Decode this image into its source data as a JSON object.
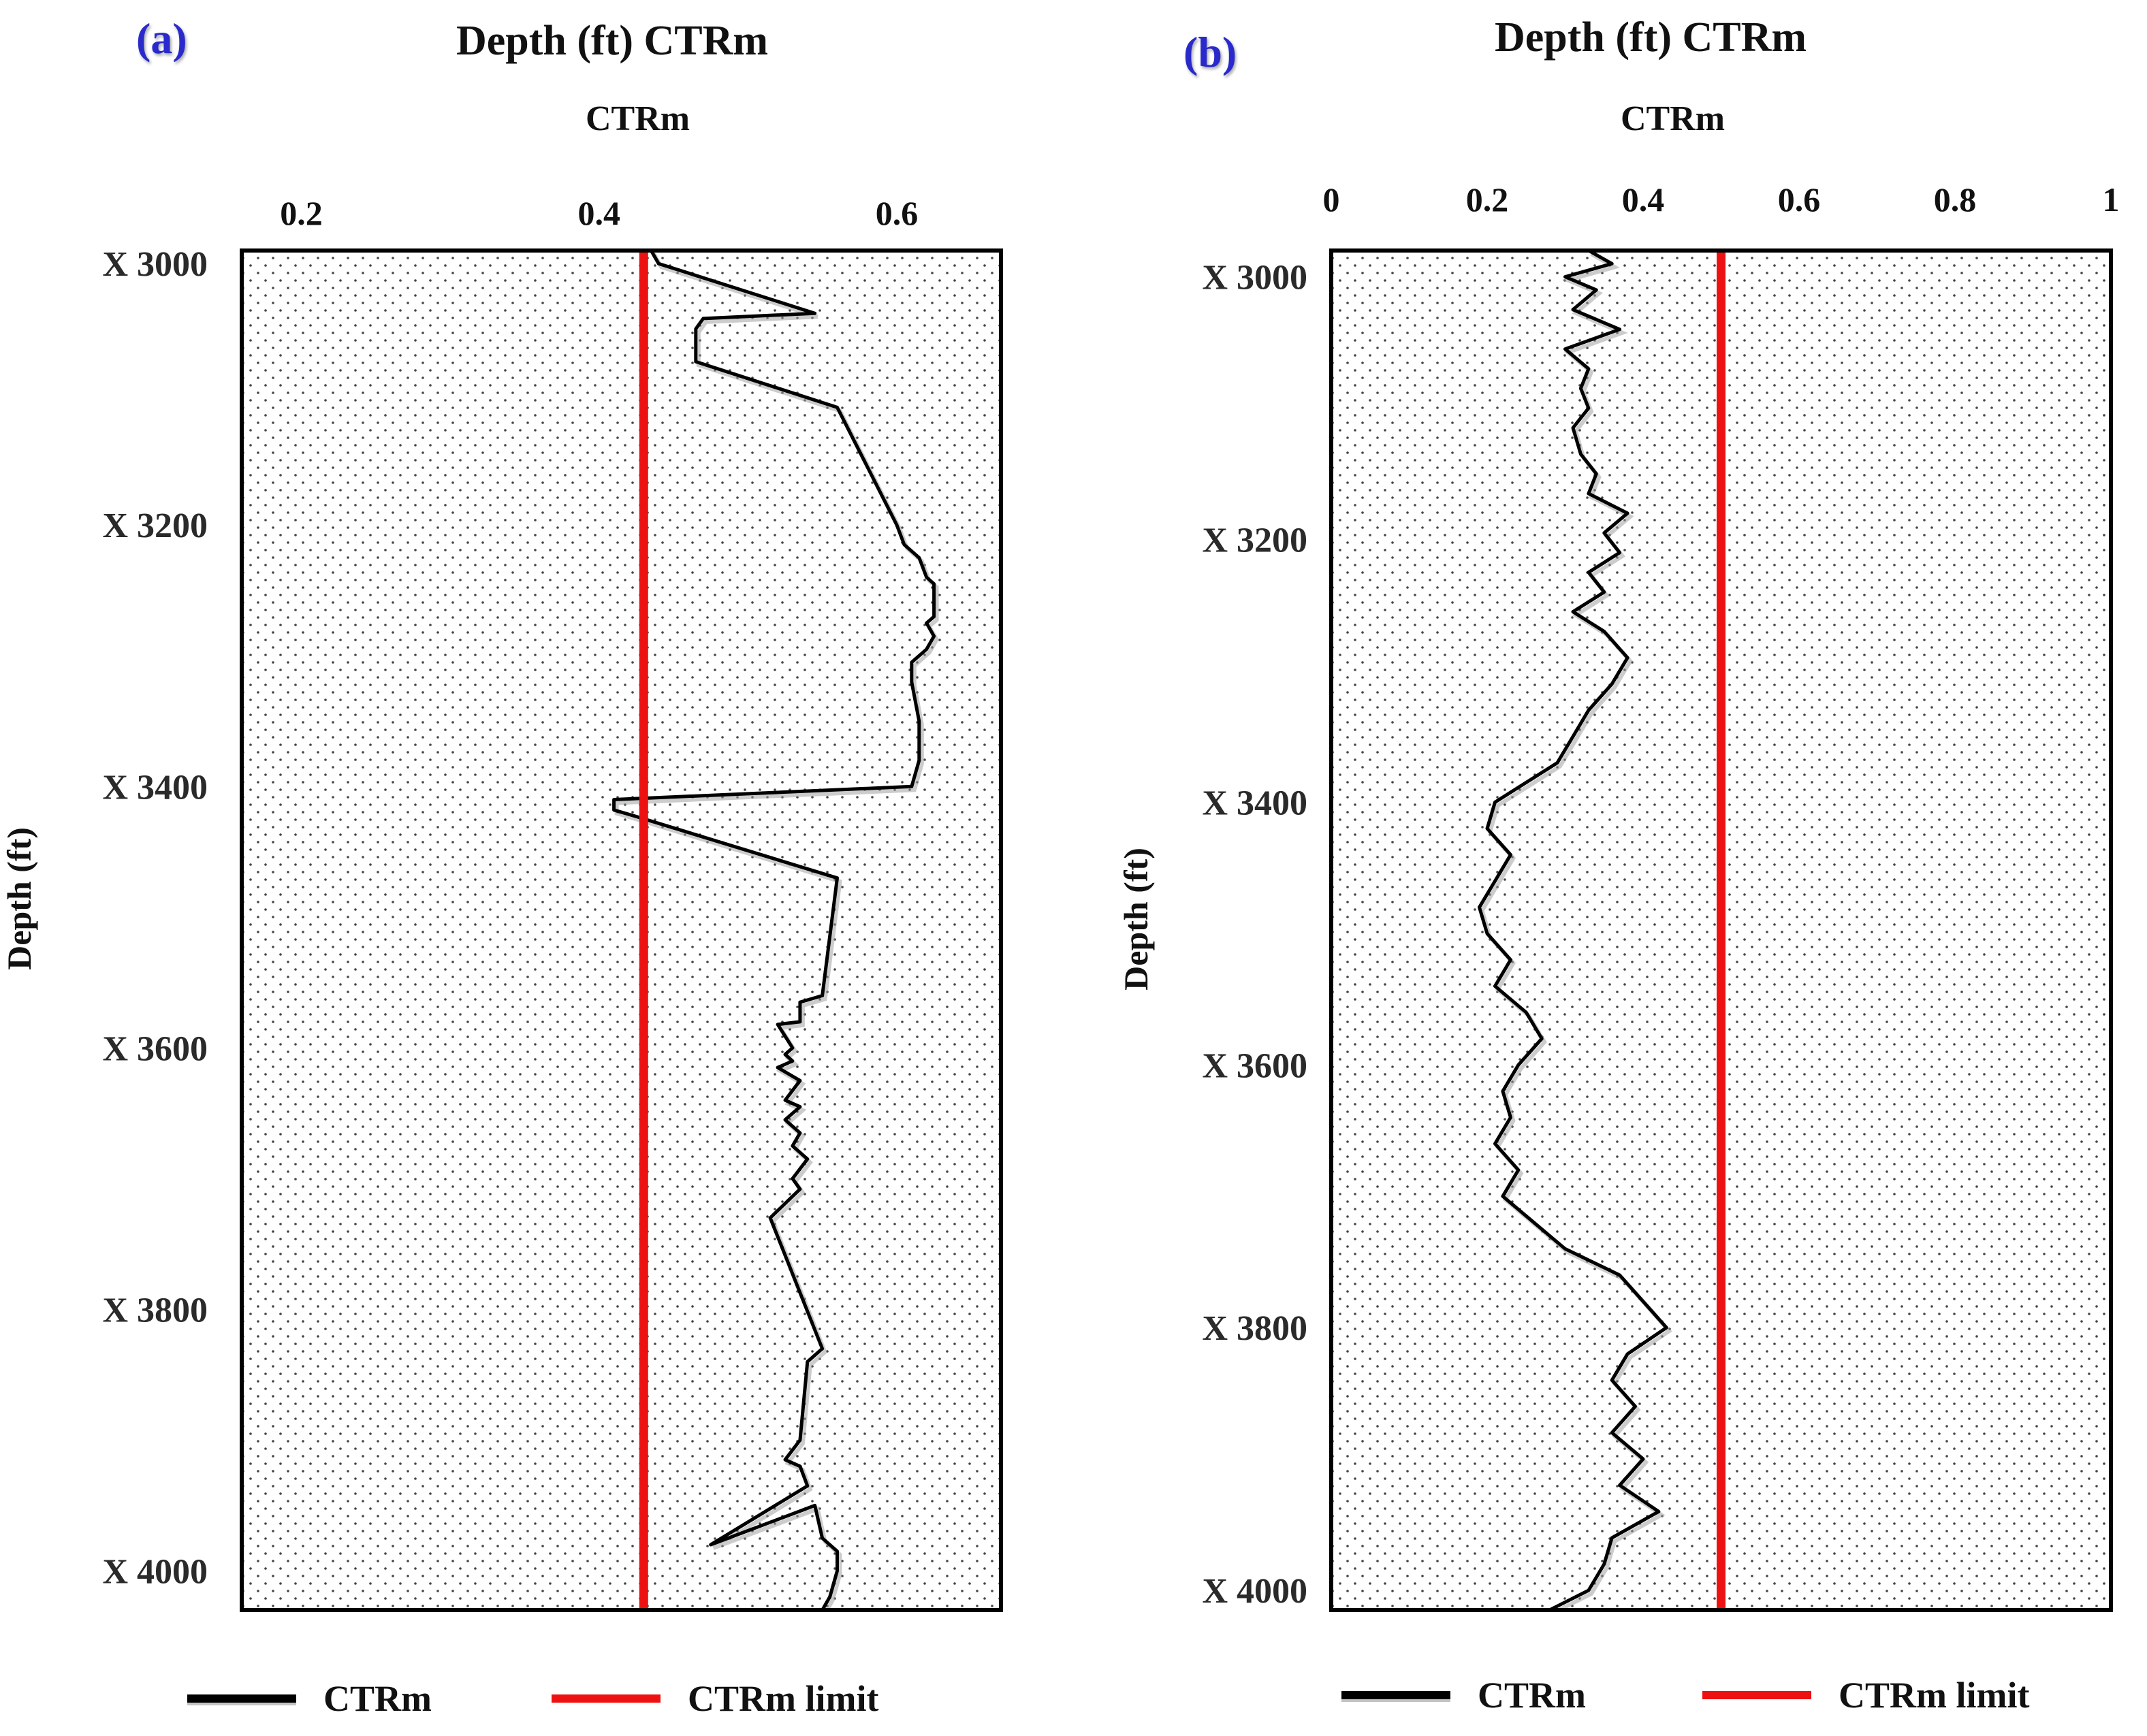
{
  "colors": {
    "curve": "#000000",
    "limit": "#ee1111",
    "panel_letter": "#2a2acc",
    "frame": "#000000",
    "dots": "#444444"
  },
  "chart_data": [
    {
      "id": "a",
      "type": "line",
      "panel_label": "(a)",
      "title": "Depth (ft) CTRm",
      "xlabel": "CTRm",
      "ylabel": "Depth (ft)",
      "xlim": [
        0.16,
        0.67
      ],
      "ylim": [
        2990,
        4030
      ],
      "xticks": [
        0.2,
        0.4,
        0.6
      ],
      "xtick_labels": [
        "0.2",
        "0.4",
        "0.6"
      ],
      "yticks": [
        3000,
        3200,
        3400,
        3600,
        3800,
        4000
      ],
      "ytick_labels": [
        "X 3000",
        "X 3200",
        "X 3400",
        "X 3600",
        "X 3800",
        "X 4000"
      ],
      "limit": 0.43,
      "legend": [
        "CTRm",
        "CTRm limit"
      ],
      "series": [
        {
          "name": "CTRm",
          "points": [
            [
              0.435,
              2990
            ],
            [
              0.44,
              3000
            ],
            [
              0.545,
              3038
            ],
            [
              0.47,
              3042
            ],
            [
              0.465,
              3050
            ],
            [
              0.465,
              3075
            ],
            [
              0.56,
              3110
            ],
            [
              0.6,
              3200
            ],
            [
              0.605,
              3215
            ],
            [
              0.615,
              3225
            ],
            [
              0.62,
              3240
            ],
            [
              0.625,
              3245
            ],
            [
              0.625,
              3270
            ],
            [
              0.62,
              3275
            ],
            [
              0.625,
              3285
            ],
            [
              0.62,
              3295
            ],
            [
              0.61,
              3305
            ],
            [
              0.61,
              3320
            ],
            [
              0.615,
              3350
            ],
            [
              0.615,
              3380
            ],
            [
              0.61,
              3400
            ],
            [
              0.41,
              3410
            ],
            [
              0.41,
              3418
            ],
            [
              0.425,
              3423
            ],
            [
              0.56,
              3470
            ],
            [
              0.55,
              3560
            ],
            [
              0.535,
              3565
            ],
            [
              0.535,
              3580
            ],
            [
              0.52,
              3582
            ],
            [
              0.53,
              3600
            ],
            [
              0.525,
              3605
            ],
            [
              0.53,
              3610
            ],
            [
              0.52,
              3615
            ],
            [
              0.535,
              3625
            ],
            [
              0.525,
              3640
            ],
            [
              0.535,
              3645
            ],
            [
              0.525,
              3655
            ],
            [
              0.535,
              3665
            ],
            [
              0.53,
              3675
            ],
            [
              0.54,
              3685
            ],
            [
              0.53,
              3700
            ],
            [
              0.535,
              3708
            ],
            [
              0.515,
              3730
            ],
            [
              0.55,
              3830
            ],
            [
              0.54,
              3840
            ],
            [
              0.535,
              3900
            ],
            [
              0.525,
              3915
            ],
            [
              0.535,
              3920
            ],
            [
              0.54,
              3935
            ],
            [
              0.475,
              3980
            ],
            [
              0.545,
              3950
            ],
            [
              0.55,
              3975
            ],
            [
              0.56,
              3985
            ],
            [
              0.56,
              4000
            ],
            [
              0.555,
              4020
            ],
            [
              0.55,
              4030
            ]
          ]
        }
      ]
    },
    {
      "id": "b",
      "type": "line",
      "panel_label": "(b)",
      "title": "Depth (ft) CTRm",
      "xlabel": "CTRm",
      "ylabel": "Depth (ft)",
      "xlim": [
        0,
        1
      ],
      "ylim": [
        2980,
        4015
      ],
      "xticks": [
        0,
        0.2,
        0.4,
        0.6,
        0.8,
        1
      ],
      "xtick_labels": [
        "0",
        "0.2",
        "0.4",
        "0.6",
        "0.8",
        "1"
      ],
      "yticks": [
        3000,
        3200,
        3400,
        3600,
        3800,
        4000
      ],
      "ytick_labels": [
        "X 3000",
        "X 3200",
        "X 3400",
        "X 3600",
        "X 3800",
        "X 4000"
      ],
      "limit": 0.5,
      "legend": [
        "CTRm",
        "CTRm limit"
      ],
      "series": [
        {
          "name": "CTRm",
          "points": [
            [
              0.33,
              2980
            ],
            [
              0.36,
              2990
            ],
            [
              0.3,
              3000
            ],
            [
              0.34,
              3010
            ],
            [
              0.31,
              3025
            ],
            [
              0.37,
              3040
            ],
            [
              0.3,
              3055
            ],
            [
              0.33,
              3070
            ],
            [
              0.32,
              3085
            ],
            [
              0.33,
              3100
            ],
            [
              0.31,
              3115
            ],
            [
              0.32,
              3135
            ],
            [
              0.34,
              3150
            ],
            [
              0.33,
              3165
            ],
            [
              0.38,
              3180
            ],
            [
              0.35,
              3195
            ],
            [
              0.37,
              3210
            ],
            [
              0.33,
              3225
            ],
            [
              0.35,
              3240
            ],
            [
              0.31,
              3255
            ],
            [
              0.35,
              3270
            ],
            [
              0.38,
              3290
            ],
            [
              0.36,
              3310
            ],
            [
              0.33,
              3330
            ],
            [
              0.31,
              3350
            ],
            [
              0.29,
              3370
            ],
            [
              0.25,
              3385
            ],
            [
              0.21,
              3400
            ],
            [
              0.2,
              3420
            ],
            [
              0.23,
              3440
            ],
            [
              0.21,
              3460
            ],
            [
              0.19,
              3480
            ],
            [
              0.2,
              3500
            ],
            [
              0.23,
              3520
            ],
            [
              0.21,
              3540
            ],
            [
              0.25,
              3560
            ],
            [
              0.27,
              3580
            ],
            [
              0.24,
              3600
            ],
            [
              0.22,
              3620
            ],
            [
              0.23,
              3640
            ],
            [
              0.21,
              3660
            ],
            [
              0.24,
              3680
            ],
            [
              0.22,
              3700
            ],
            [
              0.26,
              3720
            ],
            [
              0.3,
              3740
            ],
            [
              0.37,
              3760
            ],
            [
              0.4,
              3780
            ],
            [
              0.43,
              3800
            ],
            [
              0.38,
              3820
            ],
            [
              0.36,
              3840
            ],
            [
              0.39,
              3860
            ],
            [
              0.36,
              3880
            ],
            [
              0.4,
              3900
            ],
            [
              0.37,
              3920
            ],
            [
              0.42,
              3940
            ],
            [
              0.36,
              3960
            ],
            [
              0.35,
              3980
            ],
            [
              0.33,
              4000
            ],
            [
              0.28,
              4015
            ]
          ]
        }
      ]
    }
  ]
}
